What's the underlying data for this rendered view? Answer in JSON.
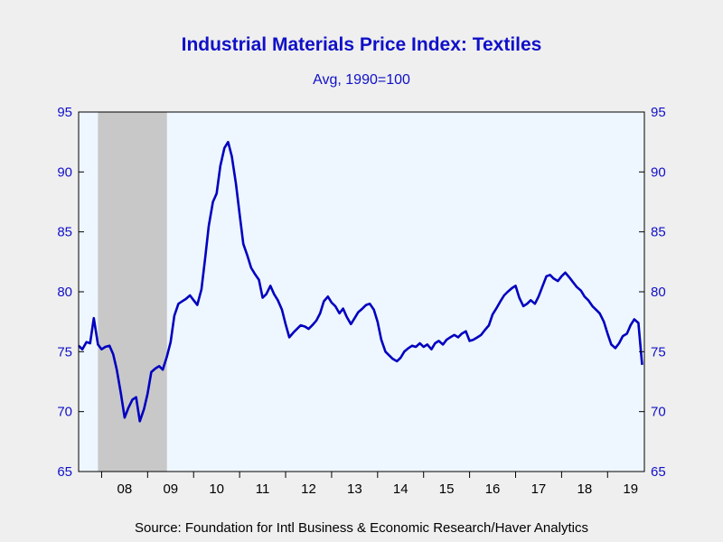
{
  "chart_data": {
    "type": "line",
    "title": "Industrial Materials Price Index: Textiles",
    "subtitle": "Avg, 1990=100",
    "source": "Source:  Foundation for Intl Business & Economic Research/Haver Analytics",
    "ylim": [
      65,
      95
    ],
    "y_ticks": [
      65,
      70,
      75,
      80,
      85,
      90,
      95
    ],
    "x_start": 2007.5,
    "x_end": 2019.8,
    "x_tick_labels": [
      "08",
      "09",
      "10",
      "11",
      "12",
      "13",
      "14",
      "15",
      "16",
      "17",
      "18",
      "19"
    ],
    "grid": false,
    "dual_y_axis": true,
    "recession_shading": [
      [
        2007.92,
        2009.42
      ]
    ],
    "colors": {
      "line": "#0000c0",
      "plot_bg": "#eef6ff",
      "recession": "#c8c8c8",
      "text": "#1010c8"
    },
    "series": [
      {
        "name": "",
        "x": [
          2007.5,
          2007.58,
          2007.67,
          2007.75,
          2007.83,
          2007.92,
          2008.0,
          2008.08,
          2008.17,
          2008.25,
          2008.33,
          2008.42,
          2008.5,
          2008.58,
          2008.67,
          2008.75,
          2008.83,
          2008.92,
          2009.0,
          2009.08,
          2009.17,
          2009.25,
          2009.33,
          2009.42,
          2009.5,
          2009.58,
          2009.67,
          2009.75,
          2009.83,
          2009.92,
          2010.0,
          2010.08,
          2010.17,
          2010.25,
          2010.33,
          2010.42,
          2010.5,
          2010.58,
          2010.67,
          2010.75,
          2010.83,
          2010.92,
          2011.0,
          2011.08,
          2011.17,
          2011.25,
          2011.33,
          2011.42,
          2011.5,
          2011.58,
          2011.67,
          2011.75,
          2011.83,
          2011.92,
          2012.0,
          2012.08,
          2012.17,
          2012.25,
          2012.33,
          2012.42,
          2012.5,
          2012.58,
          2012.67,
          2012.75,
          2012.83,
          2012.92,
          2013.0,
          2013.08,
          2013.17,
          2013.25,
          2013.33,
          2013.42,
          2013.5,
          2013.58,
          2013.67,
          2013.75,
          2013.83,
          2013.92,
          2014.0,
          2014.08,
          2014.17,
          2014.25,
          2014.33,
          2014.42,
          2014.5,
          2014.58,
          2014.67,
          2014.75,
          2014.83,
          2014.92,
          2015.0,
          2015.08,
          2015.17,
          2015.25,
          2015.33,
          2015.42,
          2015.5,
          2015.58,
          2015.67,
          2015.75,
          2015.83,
          2015.92,
          2016.0,
          2016.08,
          2016.17,
          2016.25,
          2016.33,
          2016.42,
          2016.5,
          2016.58,
          2016.67,
          2016.75,
          2016.83,
          2016.92,
          2017.0,
          2017.08,
          2017.17,
          2017.25,
          2017.33,
          2017.42,
          2017.5,
          2017.58,
          2017.67,
          2017.75,
          2017.83,
          2017.92,
          2018.0,
          2018.08,
          2018.17,
          2018.25,
          2018.33,
          2018.42,
          2018.5,
          2018.58,
          2018.67,
          2018.75,
          2018.83,
          2018.92,
          2019.0,
          2019.08,
          2019.17,
          2019.25,
          2019.33,
          2019.42,
          2019.5,
          2019.58,
          2019.67,
          2019.75
        ],
        "values": [
          75.5,
          75.2,
          75.8,
          75.7,
          77.8,
          75.6,
          75.2,
          75.4,
          75.5,
          74.8,
          73.5,
          71.5,
          69.5,
          70.3,
          71.0,
          71.2,
          69.2,
          70.2,
          71.5,
          73.3,
          73.6,
          73.8,
          73.5,
          74.6,
          75.8,
          78.0,
          79.0,
          79.2,
          79.4,
          79.7,
          79.3,
          78.9,
          80.2,
          82.8,
          85.5,
          87.5,
          88.2,
          90.5,
          92.0,
          92.5,
          91.3,
          89.0,
          86.5,
          84.0,
          83.0,
          82.0,
          81.5,
          81.0,
          79.5,
          79.8,
          80.5,
          79.8,
          79.3,
          78.5,
          77.3,
          76.2,
          76.6,
          76.9,
          77.2,
          77.1,
          76.9,
          77.2,
          77.6,
          78.2,
          79.2,
          79.6,
          79.1,
          78.8,
          78.2,
          78.6,
          77.9,
          77.3,
          77.8,
          78.3,
          78.6,
          78.9,
          79.0,
          78.5,
          77.5,
          76.0,
          75.0,
          74.7,
          74.4,
          74.2,
          74.5,
          75.0,
          75.3,
          75.5,
          75.4,
          75.7,
          75.4,
          75.6,
          75.2,
          75.7,
          75.9,
          75.6,
          76.0,
          76.2,
          76.4,
          76.2,
          76.5,
          76.7,
          75.9,
          76.0,
          76.2,
          76.4,
          76.8,
          77.2,
          78.1,
          78.6,
          79.2,
          79.7,
          80.0,
          80.3,
          80.5,
          79.5,
          78.8,
          79.0,
          79.3,
          79.0,
          79.6,
          80.4,
          81.3,
          81.4,
          81.1,
          80.9,
          81.3,
          81.6,
          81.2,
          80.8,
          80.4,
          80.1,
          79.6,
          79.3,
          78.8,
          78.5,
          78.2,
          77.5,
          76.5,
          75.6,
          75.3,
          75.7,
          76.3,
          76.5,
          77.2,
          77.7,
          77.4,
          73.9
        ]
      }
    ]
  }
}
